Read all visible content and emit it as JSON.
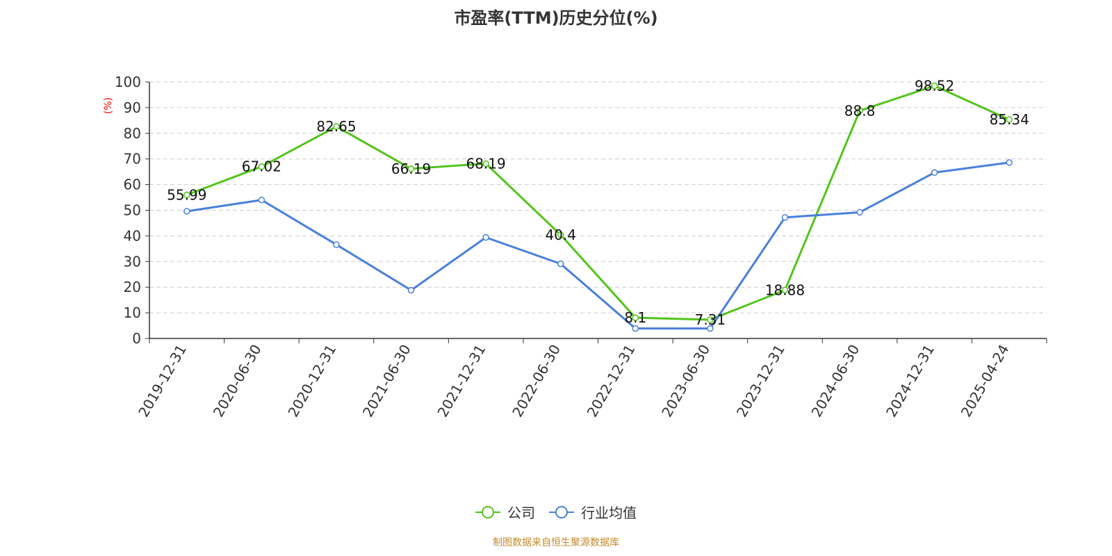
{
  "title": "市盈率(TTM)历史分位(%)",
  "source_note": "制图数据来自恒生聚源数据库",
  "chart_data": {
    "type": "line",
    "title": "市盈率(TTM)历史分位(%)",
    "ylabel": "(%)",
    "ylim": [
      0,
      100
    ],
    "yticks": [
      0,
      10,
      20,
      30,
      40,
      50,
      60,
      70,
      80,
      90,
      100
    ],
    "grid": true,
    "legend_position": "bottom",
    "categories": [
      "2019-12-31",
      "2020-06-30",
      "2020-12-31",
      "2021-06-30",
      "2021-12-31",
      "2022-06-30",
      "2022-12-31",
      "2023-06-30",
      "2023-12-31",
      "2024-06-30",
      "2024-12-31",
      "2025-04-24"
    ],
    "series": [
      {
        "name": "公司",
        "color": "#52c41a",
        "show_labels": true,
        "values": [
          55.99,
          67.02,
          82.65,
          66.19,
          68.19,
          40.4,
          8.1,
          7.31,
          18.88,
          88.8,
          98.52,
          85.34
        ]
      },
      {
        "name": "行业均值",
        "color": "#4a7fdb",
        "show_labels": false,
        "values": [
          49.6,
          54.0,
          36.6,
          18.8,
          39.4,
          29.1,
          3.9,
          3.9,
          47.2,
          49.2,
          64.7,
          68.6
        ]
      }
    ]
  }
}
